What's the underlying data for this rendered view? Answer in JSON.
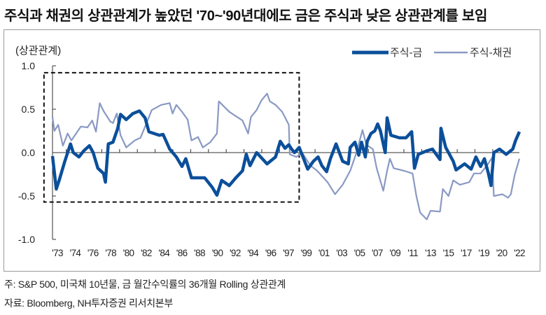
{
  "title": "주식과 채권의 상관관계가 높았던 '70~'90년대에도 금은 주식과 낮은 상관관계를 보임",
  "notes": {
    "note": "주: S&P 500, 미국채 10년물, 금 월간수익률의 36개월 Rolling 상관관계",
    "source": "자료: Bloomberg, NH투자증권 리서치본부"
  },
  "colors": {
    "gold": "#0b4f9a",
    "bond": "#8a99c4",
    "box": "#111111"
  },
  "chart_data": {
    "type": "line",
    "title": "",
    "ylabel": "(상관관계)",
    "xlabel": "",
    "ylim": [
      -1.0,
      1.0
    ],
    "yticks": [
      1.0,
      0.5,
      0.0,
      -0.5,
      -1.0
    ],
    "ytick_labels": [
      "1.0",
      "0.5",
      "0.0",
      "-0.5",
      "-1.0"
    ],
    "xlim": [
      1973.0,
      2022.4
    ],
    "xtick_labels": [
      "'73",
      "'74",
      "'76",
      "'78",
      "'80",
      "'82",
      "'84",
      "'86",
      "'88",
      "'90",
      "'92",
      "'94",
      "'96",
      "'97",
      "'99",
      "'01",
      "'03",
      "'05",
      "'07",
      "'09",
      "'11",
      "'13",
      "'15",
      "'17",
      "'19",
      "'20",
      "'22"
    ],
    "grid": false,
    "legend": "top-right",
    "highlight_box": {
      "x": [
        1972.1,
        1999.1
      ],
      "y": [
        -0.57,
        0.92
      ]
    },
    "series": [
      {
        "name": "주식-금",
        "x": [
          1973.0,
          1973.4,
          1973.7,
          1974.3,
          1974.9,
          1975.2,
          1975.8,
          1976.3,
          1976.9,
          1977.3,
          1977.8,
          1978.4,
          1978.6,
          1978.9,
          1979.4,
          1979.9,
          1980.2,
          1980.8,
          1981.5,
          1982.2,
          1982.8,
          1983.2,
          1984.3,
          1984.7,
          1985.4,
          1986.1,
          1986.7,
          1987.1,
          1987.7,
          1989.1,
          1989.9,
          1990.4,
          1990.9,
          1991.7,
          1992.4,
          1993.1,
          1993.5,
          1993.9,
          1994.6,
          1995.7,
          1996.6,
          1997.1,
          1997.6,
          1998.0,
          1998.3,
          1998.6,
          1999.1,
          2000.0,
          2000.6,
          2001.1,
          2001.5,
          2002.0,
          2002.4,
          2003.0,
          2003.7,
          2004.3,
          2004.5,
          2005.0,
          2005.4,
          2005.7,
          2006.1,
          2006.3,
          2006.7,
          2007.1,
          2007.4,
          2007.7,
          2008.2,
          2008.4,
          2008.8,
          2009.7,
          2010.4,
          2011.0,
          2011.3,
          2011.7,
          2012.6,
          2013.2,
          2014.0,
          2014.1,
          2014.6,
          2015.4,
          2015.7,
          2016.6,
          2017.3,
          2017.8,
          2018.3,
          2018.7,
          2019.1,
          2019.4,
          2019.7,
          2020.3,
          2021.0,
          2021.7,
          2022.0,
          2022.4
        ],
        "values": [
          -0.04,
          -0.42,
          -0.32,
          -0.1,
          0.1,
          0,
          -0.05,
          0.02,
          0.08,
          0,
          -0.18,
          -0.24,
          -0.34,
          0.1,
          0.12,
          0.28,
          0.44,
          0.38,
          0.45,
          0.48,
          0.4,
          0.24,
          0.2,
          0.21,
          0.04,
          -0.05,
          -0.16,
          -0.07,
          -0.29,
          -0.29,
          -0.4,
          -0.49,
          -0.32,
          -0.38,
          -0.29,
          -0.21,
          -0.02,
          -0.15,
          0,
          -0.13,
          -0.05,
          0.13,
          0.05,
          0.09,
          0.04,
          0,
          0.06,
          -0.19,
          -0.1,
          -0.05,
          -0.15,
          -0.22,
          -0.07,
          0.1,
          -0.1,
          -0.13,
          0.06,
          0.12,
          -0.03,
          0.12,
          -0.05,
          0.13,
          0.22,
          0.25,
          0.33,
          0.25,
          0,
          0.4,
          0.2,
          0.17,
          0.17,
          0.24,
          -0.18,
          -0.02,
          0.02,
          0.04,
          -0.08,
          0.28,
          0.06,
          -0.1,
          -0.2,
          -0.13,
          -0.19,
          -0.05,
          -0.16,
          -0.07,
          -0.23,
          -0.38,
          0,
          0.04,
          -0.02,
          0.04,
          0.14,
          0.24
        ]
      },
      {
        "name": "주식-채권",
        "x": [
          1973.0,
          1973.2,
          1973.6,
          1974.1,
          1974.6,
          1975.0,
          1976.0,
          1976.7,
          1977.2,
          1977.6,
          1978.0,
          1978.4,
          1979.1,
          1979.4,
          1979.8,
          1980.2,
          1980.8,
          1981.7,
          1982.3,
          1982.8,
          1983.5,
          1984.5,
          1985.4,
          1985.7,
          1986.1,
          1986.7,
          1987.3,
          1987.7,
          1988.4,
          1988.9,
          1989.7,
          1990.4,
          1990.6,
          1991.7,
          1992.4,
          1993.1,
          1993.7,
          1994.0,
          1994.6,
          1995.1,
          1995.7,
          1996.0,
          1996.6,
          1997.3,
          1998.0,
          1998.1,
          1998.8,
          1999.4,
          2000.3,
          2001.0,
          2002.1,
          2002.9,
          2003.7,
          2004.5,
          2005.1,
          2005.8,
          2006.2,
          2006.9,
          2007.3,
          2008.0,
          2008.4,
          2008.7,
          2009.1,
          2010.2,
          2011.1,
          2011.5,
          2011.9,
          2012.6,
          2013.0,
          2014.0,
          2014.3,
          2014.9,
          2015.4,
          2016.1,
          2017.1,
          2017.6,
          2018.3,
          2019.1,
          2019.5,
          2019.7,
          2020.6,
          2021.2,
          2021.5,
          2021.9,
          2022.4
        ],
        "values": [
          0.41,
          0.25,
          0.32,
          0.08,
          0.22,
          0.14,
          0.3,
          0.29,
          0.37,
          0.24,
          0.57,
          0.48,
          0.36,
          0.34,
          0.45,
          0.2,
          0.06,
          0.14,
          0.17,
          0.3,
          0.49,
          0.55,
          0.57,
          0.45,
          0.55,
          0.47,
          0.38,
          0.14,
          0.18,
          0.06,
          0.12,
          0.22,
          0.59,
          0.47,
          0.42,
          0.37,
          0.22,
          0.41,
          0.49,
          0.6,
          0.68,
          0.59,
          0.55,
          0.47,
          0.32,
          -0.02,
          -0.05,
          0,
          -0.15,
          -0.21,
          -0.34,
          -0.48,
          -0.37,
          -0.21,
          -0.02,
          0.26,
          0.09,
          0.04,
          -0.18,
          -0.44,
          -0.21,
          -0.07,
          -0.18,
          -0.21,
          -0.24,
          -0.5,
          -0.69,
          -0.77,
          -0.67,
          -0.68,
          -0.42,
          -0.5,
          -0.32,
          -0.37,
          -0.34,
          -0.24,
          -0.24,
          -0.13,
          -0.06,
          -0.5,
          -0.48,
          -0.52,
          -0.48,
          -0.26,
          -0.07
        ]
      }
    ]
  }
}
